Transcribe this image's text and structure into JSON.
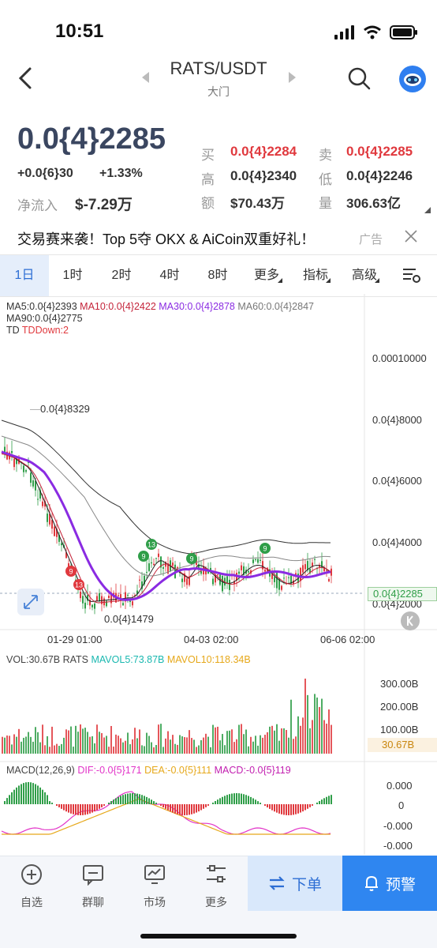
{
  "status_bar": {
    "time": "10:51"
  },
  "header": {
    "pair": "RATS/USDT",
    "exchange": "大门"
  },
  "price": {
    "last": "0.0{4}2285",
    "change_abs": "+0.0{6}30",
    "change_pct": "+1.33%",
    "inflow_label": "净流入",
    "inflow_value": "$-7.29万"
  },
  "stats": {
    "buy_label": "买",
    "buy": "0.0{4}2284",
    "sell_label": "卖",
    "sell": "0.0{4}2285",
    "high_label": "高",
    "high": "0.0{4}2340",
    "low_label": "低",
    "low": "0.0{4}2246",
    "amount_label": "额",
    "amount": "$70.43万",
    "volume_label": "量",
    "volume": "306.63亿"
  },
  "ad": {
    "text": "交易赛来袭！Top 5夺 OKX & AiCoin双重好礼！",
    "tag": "广告"
  },
  "tabs": [
    {
      "label": "1日"
    },
    {
      "label": "1时"
    },
    {
      "label": "2时"
    },
    {
      "label": "4时"
    },
    {
      "label": "8时"
    },
    {
      "label": "更多"
    },
    {
      "label": "指标"
    },
    {
      "label": "高级"
    }
  ],
  "indicators": {
    "ma5": "MA5:0.0{4}2393",
    "ma10": "MA10:0.0{4}2422",
    "ma30": "MA30:0.0{4}2878",
    "ma60": "MA60:0.0{4}2847",
    "ma90": "MA90:0.0{4}2775",
    "td_label": "TD",
    "td_value": "TDDown:2"
  },
  "colors": {
    "ma5": "#222222",
    "ma10": "#c4243a",
    "ma30": "#8a2be2",
    "ma60": "#888888",
    "up": "#2f9e48",
    "down": "#e0393e",
    "accent": "#2d6ed4"
  },
  "price_axis": [
    "0.00010000",
    "0.0{4}8000",
    "0.0{4}6000",
    "0.0{4}4000",
    "0.0{4}2000"
  ],
  "current_price_tag": "0.0{4}2285",
  "annotations": {
    "high": "0.0{4}8329",
    "low": "0.0{4}1479"
  },
  "td_markers": [
    "13",
    "9",
    "9",
    "9",
    "9",
    "13"
  ],
  "time_axis": [
    "01-29 01:00",
    "04-03 02:00",
    "06-06 02:00"
  ],
  "volume": {
    "vol": "VOL:30.67B RATS",
    "mavol5": "MAVOL5:73.87B",
    "mavol10": "MAVOL10:118.34B",
    "axis": [
      "300.00B",
      "200.00B",
      "100.00B"
    ],
    "current_tag": "30.67B"
  },
  "macd": {
    "label": "MACD(12,26,9)",
    "dif": "DIF:-0.0{5}171",
    "dea": "DEA:-0.0{5}111",
    "macd": "MACD:-0.0{5}119",
    "axis": [
      "0.000",
      "0",
      "-0.000",
      "-0.000"
    ]
  },
  "bottom_nav": {
    "items": [
      {
        "label": "自选",
        "icon": "plus-circle-icon"
      },
      {
        "label": "群聊",
        "icon": "chat-icon"
      },
      {
        "label": "市场",
        "icon": "market-icon"
      },
      {
        "label": "更多",
        "icon": "more-icon"
      }
    ],
    "order": "下单",
    "alert": "预警"
  }
}
